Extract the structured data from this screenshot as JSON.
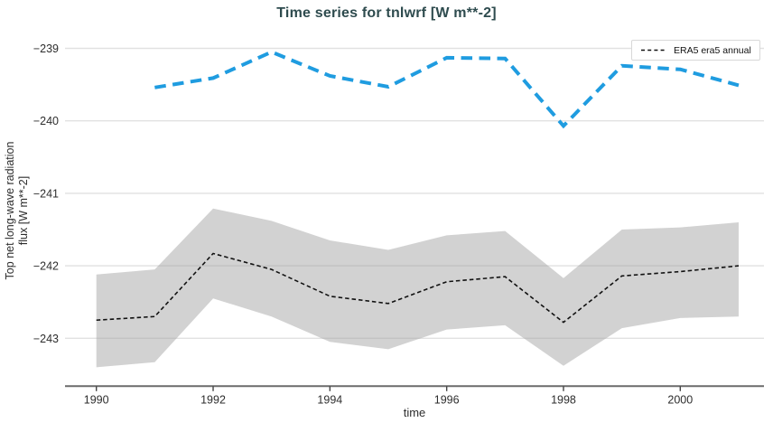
{
  "colors": {
    "title_text": "#2e4b4e",
    "blue_series": "#1f9ce0",
    "black_series": "#111111",
    "uncertainty_band": "#d2d2d2",
    "gridline": "#e3e3e3",
    "axis_line": "#6b6b6b",
    "tick_text": "#2d2d2d",
    "legend_border": "#d8d8d8"
  },
  "chart_data": {
    "type": "line",
    "title": "Time series for tnlwrf [W m**-2]",
    "xlabel": "time",
    "ylabel_lines": [
      "Top net long-wave radiation",
      "flux [W m**-2]"
    ],
    "x_ticks": [
      1990,
      1992,
      1994,
      1996,
      1998,
      2000
    ],
    "y_ticks": [
      -239,
      -240,
      -241,
      -242,
      -243
    ],
    "xlim": [
      1989.45,
      2001.5
    ],
    "ylim": [
      -243.66,
      -238.83
    ],
    "grid": "horizontal-only",
    "legend": {
      "position": "top-right",
      "entries": [
        {
          "label": "ERA5 era5 annual",
          "line_style": "dashed",
          "color": "#111111"
        }
      ]
    },
    "series": [
      {
        "id": "era5-annual",
        "legend_label": "ERA5 era5 annual",
        "color": "#111111",
        "dash": "short-dash",
        "x": [
          1990,
          1991,
          1992,
          1993,
          1994,
          1995,
          1996,
          1997,
          1998,
          1999,
          2000,
          2001
        ],
        "y": [
          -242.75,
          -242.7,
          -241.83,
          -242.05,
          -242.42,
          -242.52,
          -242.22,
          -242.15,
          -242.78,
          -242.14,
          -242.08,
          -242.0
        ],
        "band": {
          "color": "#d2d2d2",
          "upper": [
            -242.12,
            -242.05,
            -241.21,
            -241.38,
            -241.65,
            -241.78,
            -241.58,
            -241.52,
            -242.17,
            -241.5,
            -241.47,
            -241.4
          ],
          "lower": [
            -243.4,
            -243.33,
            -242.45,
            -242.7,
            -243.05,
            -243.15,
            -242.88,
            -242.82,
            -243.38,
            -242.86,
            -242.72,
            -242.7
          ]
        }
      },
      {
        "id": "blue-dashed-annual",
        "legend_label": null,
        "color": "#1f9ce0",
        "dash": "long-dash",
        "x": [
          1991,
          1992,
          1993,
          1994,
          1995,
          1996,
          1997,
          1998,
          1999,
          2000,
          2001
        ],
        "y": [
          -239.54,
          -239.41,
          -239.05,
          -239.38,
          -239.53,
          -239.13,
          -239.14,
          -240.07,
          -239.24,
          -239.29,
          -239.51
        ]
      }
    ]
  }
}
